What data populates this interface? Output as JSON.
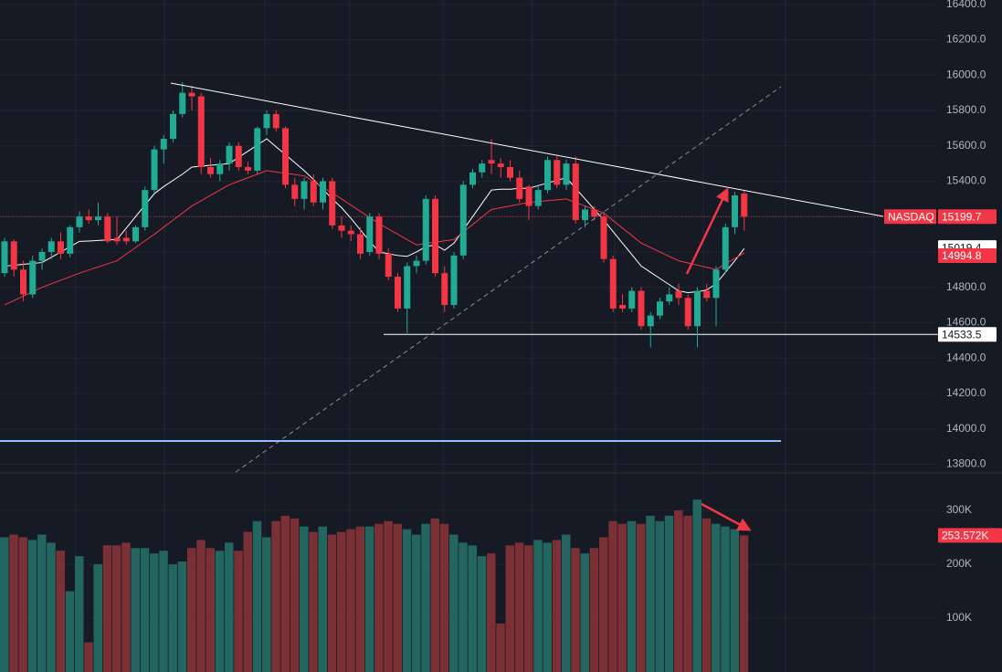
{
  "chart_data": {
    "type": "candlestick",
    "symbol": "NASDAQ",
    "up_color": "#22ab94",
    "down_color": "#f23645",
    "open": [
      14880,
      15060,
      14900,
      14760,
      14950,
      15000,
      15060,
      14990,
      15140,
      15200,
      15180,
      15200,
      15080,
      15080,
      15060,
      15140,
      15350,
      15580,
      15640,
      15780,
      15900,
      15880,
      15480,
      15440,
      15500,
      15600,
      15480,
      15460,
      15700,
      15780,
      15700,
      15380,
      15300,
      15400,
      15280,
      15400,
      15150,
      15120,
      15100,
      15000,
      15200,
      14990,
      14860,
      14680,
      14920,
      14950,
      15300,
      14880,
      14700,
      14980,
      15380,
      15450,
      15520,
      15500,
      15480,
      15420,
      15370,
      15260,
      15350,
      15520,
      15380,
      15500,
      15180,
      15240,
      15200,
      14960,
      14700,
      14680,
      14780,
      14580,
      14640,
      14720,
      14780,
      14740,
      14580,
      14780,
      14740,
      14900,
      15140,
      15330
    ],
    "high": [
      15080,
      15070,
      14950,
      14980,
      15020,
      15080,
      15110,
      15150,
      15230,
      15240,
      15280,
      15220,
      15200,
      15120,
      15150,
      15370,
      15600,
      15660,
      15800,
      15960,
      15940,
      15900,
      15530,
      15520,
      15620,
      15620,
      15510,
      15710,
      15800,
      15800,
      15710,
      15420,
      15420,
      15440,
      15420,
      15420,
      15200,
      15150,
      15140,
      15220,
      15220,
      15020,
      14880,
      14940,
      14980,
      15320,
      15320,
      14920,
      15000,
      15400,
      15470,
      15520,
      15640,
      15530,
      15520,
      15460,
      15380,
      15380,
      15540,
      15540,
      15520,
      15540,
      15260,
      15260,
      15230,
      14980,
      14760,
      14800,
      14800,
      14660,
      14740,
      14800,
      14820,
      14760,
      14800,
      14820,
      14920,
      15160,
      15340,
      15350
    ],
    "low": [
      14860,
      14860,
      14720,
      14740,
      14900,
      14960,
      14960,
      14970,
      15110,
      15160,
      15150,
      15050,
      15040,
      15040,
      15050,
      15120,
      15330,
      15500,
      15620,
      15760,
      15800,
      15440,
      15420,
      15400,
      15460,
      15460,
      15440,
      15440,
      15660,
      15680,
      15360,
      15260,
      15240,
      15260,
      15240,
      15130,
      15080,
      15060,
      14960,
      14980,
      14960,
      14840,
      14660,
      14540,
      14880,
      14930,
      14860,
      14660,
      14680,
      14960,
      15360,
      15420,
      15440,
      15420,
      15400,
      15280,
      15180,
      15240,
      15330,
      15360,
      15350,
      15160,
      15140,
      15180,
      14940,
      14660,
      14660,
      14660,
      14560,
      14460,
      14620,
      14700,
      14700,
      14560,
      14460,
      14720,
      14580,
      14880,
      15100,
      15120
    ],
    "close": [
      15060,
      14900,
      14760,
      14950,
      15000,
      15060,
      14990,
      15140,
      15200,
      15180,
      15200,
      15060,
      15060,
      15060,
      15140,
      15350,
      15580,
      15640,
      15780,
      15900,
      15880,
      15480,
      15440,
      15500,
      15600,
      15480,
      15460,
      15700,
      15780,
      15700,
      15380,
      15300,
      15400,
      15280,
      15400,
      15150,
      15120,
      15100,
      14990,
      15200,
      14990,
      14860,
      14680,
      14920,
      14950,
      15300,
      14880,
      14700,
      14980,
      15380,
      15450,
      15500,
      15500,
      15480,
      15420,
      15300,
      15260,
      15350,
      15520,
      15380,
      15500,
      15180,
      15240,
      15200,
      14960,
      14680,
      14680,
      14780,
      14580,
      14640,
      14720,
      14760,
      14740,
      14580,
      14780,
      14740,
      14900,
      15140,
      15320,
      15199.7
    ],
    "ylim": [
      13750,
      16425
    ],
    "yticks": [
      {
        "value": 13800,
        "label": "13800.0"
      },
      {
        "value": 14000,
        "label": "14000.0"
      },
      {
        "value": 14200,
        "label": "14200.0"
      },
      {
        "value": 14400,
        "label": "14400.0"
      },
      {
        "value": 14600,
        "label": "14600.0"
      },
      {
        "value": 14800,
        "label": "14800.0"
      },
      {
        "value": 15000,
        "label": "15000.0"
      },
      {
        "value": 15200,
        "label": "15200.0"
      },
      {
        "value": 15400,
        "label": "15400.0"
      },
      {
        "value": 15600,
        "label": "15600.0"
      },
      {
        "value": 15800,
        "label": "15800.0"
      },
      {
        "value": 16000,
        "label": "16000.0"
      },
      {
        "value": 16200,
        "label": "16200.0"
      },
      {
        "value": 16400,
        "label": "16400.0"
      }
    ],
    "grid": true,
    "moving_averages": [
      {
        "color": "#ffffff",
        "values": [
          14920,
          14925,
          14930,
          14935,
          14940,
          14970,
          15000,
          15030,
          15060,
          15062,
          15065,
          15068,
          15070,
          15135,
          15200,
          15265,
          15330,
          15370,
          15405,
          15440,
          15480,
          15485,
          15490,
          15495,
          15500,
          15535,
          15570,
          15605,
          15640,
          15595,
          15550,
          15505,
          15460,
          15410,
          15355,
          15300,
          15250,
          15190,
          15125,
          15060,
          15000,
          14990,
          14980,
          14975,
          15000,
          15030,
          15040,
          15010,
          15050,
          15125,
          15200,
          15275,
          15350,
          15355,
          15355,
          15360,
          15360,
          15375,
          15390,
          15405,
          15420,
          15360,
          15300,
          15240,
          15180,
          15115,
          15050,
          14985,
          14920,
          14885,
          14850,
          14815,
          14780,
          14770,
          14775,
          14785,
          14820,
          14885,
          14950,
          15019.4
        ]
      },
      {
        "color": "#f23645",
        "values": [
          14700,
          14725,
          14750,
          14775,
          14800,
          14820,
          14840,
          14860,
          14880,
          14898,
          14915,
          14933,
          14950,
          14988,
          15025,
          15063,
          15100,
          15140,
          15180,
          15220,
          15260,
          15290,
          15320,
          15350,
          15380,
          15400,
          15420,
          15440,
          15460,
          15452,
          15445,
          15438,
          15430,
          15398,
          15365,
          15333,
          15300,
          15265,
          15230,
          15195,
          15160,
          15130,
          15100,
          15070,
          15040,
          15048,
          15055,
          15063,
          15070,
          15113,
          15155,
          15198,
          15240,
          15250,
          15260,
          15270,
          15280,
          15285,
          15290,
          15295,
          15300,
          15280,
          15260,
          15240,
          15220,
          15178,
          15135,
          15093,
          15050,
          15025,
          15000,
          14975,
          14950,
          14938,
          14925,
          14913,
          14900,
          14932,
          14963,
          14994.8
        ]
      }
    ],
    "levels": [
      {
        "value": 14533.5,
        "color": "#ffffff"
      }
    ],
    "volume": {
      "up_color": "#22665f",
      "down_color": "#7a3034",
      "values": [
        250000,
        255000,
        250000,
        245000,
        255000,
        240000,
        225000,
        150000,
        215000,
        55000,
        200000,
        235000,
        235000,
        240000,
        230000,
        230000,
        220000,
        225000,
        200000,
        205000,
        230000,
        245000,
        230000,
        225000,
        240000,
        225000,
        260000,
        280000,
        250000,
        280000,
        290000,
        285000,
        270000,
        260000,
        270000,
        255000,
        260000,
        265000,
        270000,
        270000,
        275000,
        280000,
        275000,
        265000,
        255000,
        275000,
        285000,
        275000,
        255000,
        240000,
        235000,
        215000,
        220000,
        90000,
        235000,
        240000,
        235000,
        245000,
        240000,
        245000,
        255000,
        230000,
        220000,
        230000,
        250000,
        280000,
        275000,
        280000,
        275000,
        290000,
        280000,
        290000,
        300000,
        290000,
        320000,
        285000,
        275000,
        270000,
        265000,
        253572
      ],
      "value_labels": [
        null,
        null,
        null,
        null,
        null,
        null,
        null,
        null,
        null,
        null,
        null,
        null,
        null,
        null,
        null,
        null,
        null,
        null,
        null,
        null,
        null,
        null,
        null,
        null,
        null,
        null,
        null,
        null,
        null,
        null,
        null,
        null,
        null,
        null,
        null,
        null,
        null,
        null,
        null,
        null,
        null,
        null,
        null,
        null,
        null,
        null,
        null,
        null,
        null,
        null,
        null,
        null,
        null,
        null,
        null,
        null,
        null,
        null,
        null,
        null,
        null,
        null,
        null,
        null,
        null,
        null,
        null,
        null,
        null,
        null,
        null,
        null,
        null,
        null,
        null,
        null,
        null,
        null,
        null,
        "253.572K"
      ],
      "ylim": [
        0,
        366000
      ],
      "yticks": [
        {
          "value": 100000,
          "label": "100K"
        },
        {
          "value": 200000,
          "label": "200K"
        },
        {
          "value": 300000,
          "label": "300K"
        }
      ]
    }
  }
}
